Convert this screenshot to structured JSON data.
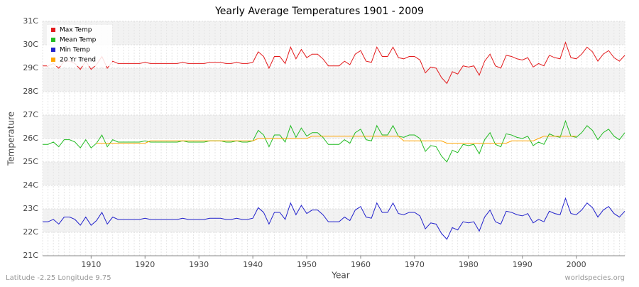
{
  "chart_data": {
    "type": "line",
    "title": "Yearly Average Temperatures 1901 - 2009",
    "x_label": "Year",
    "y_label": "Temperature",
    "footer_left": "Latitude -2.25 Longitude 9.75",
    "footer_right": "worldspecies.org",
    "legend": "top-left",
    "grid": true,
    "x": [
      1901,
      1902,
      1903,
      1904,
      1905,
      1906,
      1907,
      1908,
      1909,
      1910,
      1911,
      1912,
      1913,
      1914,
      1915,
      1916,
      1917,
      1918,
      1919,
      1920,
      1921,
      1922,
      1923,
      1924,
      1925,
      1926,
      1927,
      1928,
      1929,
      1930,
      1931,
      1932,
      1933,
      1934,
      1935,
      1936,
      1937,
      1938,
      1939,
      1940,
      1941,
      1942,
      1943,
      1944,
      1945,
      1946,
      1947,
      1948,
      1949,
      1950,
      1951,
      1952,
      1953,
      1954,
      1955,
      1956,
      1957,
      1958,
      1959,
      1960,
      1961,
      1962,
      1963,
      1964,
      1965,
      1966,
      1967,
      1968,
      1969,
      1970,
      1971,
      1972,
      1973,
      1974,
      1975,
      1976,
      1977,
      1978,
      1979,
      1980,
      1981,
      1982,
      1983,
      1984,
      1985,
      1986,
      1987,
      1988,
      1989,
      1990,
      1991,
      1992,
      1993,
      1994,
      1995,
      1996,
      1997,
      1998,
      1999,
      2000,
      2001,
      2002,
      2003,
      2004,
      2005,
      2006,
      2007,
      2008,
      2009
    ],
    "xlim": [
      1901,
      2009
    ],
    "xticks": [
      1910,
      1920,
      1930,
      1940,
      1950,
      1960,
      1970,
      1980,
      1990,
      2000
    ],
    "ylim": [
      21,
      31
    ],
    "yticks": [
      {
        "value": 21,
        "label": "21C"
      },
      {
        "value": 22,
        "label": "22C"
      },
      {
        "value": 23,
        "label": "23C"
      },
      {
        "value": 24,
        "label": "24C"
      },
      {
        "value": 25,
        "label": "25C"
      },
      {
        "value": 26,
        "label": "26C"
      },
      {
        "value": 27,
        "label": "27C"
      },
      {
        "value": 28,
        "label": "28C"
      },
      {
        "value": 29,
        "label": "29C"
      },
      {
        "value": 30,
        "label": "30C"
      },
      {
        "value": 31,
        "label": "31C"
      }
    ],
    "series": [
      {
        "name": "Max Temp",
        "color": "#e31a1c",
        "values": [
          29.1,
          29.1,
          29.2,
          29.0,
          29.3,
          29.3,
          29.2,
          28.95,
          29.3,
          28.95,
          29.15,
          29.5,
          29.0,
          29.3,
          29.2,
          29.2,
          29.2,
          29.2,
          29.2,
          29.25,
          29.2,
          29.2,
          29.2,
          29.2,
          29.2,
          29.2,
          29.25,
          29.2,
          29.2,
          29.2,
          29.2,
          29.25,
          29.25,
          29.25,
          29.2,
          29.2,
          29.25,
          29.2,
          29.2,
          29.25,
          29.7,
          29.5,
          29.0,
          29.5,
          29.5,
          29.2,
          29.9,
          29.4,
          29.8,
          29.45,
          29.6,
          29.6,
          29.4,
          29.1,
          29.1,
          29.1,
          29.3,
          29.15,
          29.6,
          29.75,
          29.3,
          29.25,
          29.9,
          29.5,
          29.5,
          29.9,
          29.45,
          29.4,
          29.5,
          29.5,
          29.35,
          28.8,
          29.05,
          29.0,
          28.6,
          28.35,
          28.85,
          28.75,
          29.1,
          29.05,
          29.1,
          28.7,
          29.3,
          29.6,
          29.1,
          29.0,
          29.55,
          29.5,
          29.4,
          29.35,
          29.45,
          29.05,
          29.2,
          29.1,
          29.55,
          29.45,
          29.4,
          30.1,
          29.45,
          29.4,
          29.6,
          29.9,
          29.7,
          29.3,
          29.6,
          29.75,
          29.45,
          29.3,
          29.55
        ]
      },
      {
        "name": "Mean Temp",
        "color": "#22bb22",
        "values": [
          25.75,
          25.75,
          25.85,
          25.65,
          25.95,
          25.95,
          25.85,
          25.6,
          25.95,
          25.6,
          25.8,
          26.15,
          25.65,
          25.95,
          25.85,
          25.85,
          25.85,
          25.85,
          25.85,
          25.9,
          25.85,
          25.85,
          25.85,
          25.85,
          25.85,
          25.85,
          25.9,
          25.85,
          25.85,
          25.85,
          25.85,
          25.9,
          25.9,
          25.9,
          25.85,
          25.85,
          25.9,
          25.85,
          25.85,
          25.9,
          26.35,
          26.15,
          25.65,
          26.15,
          26.15,
          25.85,
          26.55,
          26.05,
          26.45,
          26.1,
          26.25,
          26.25,
          26.05,
          25.75,
          25.75,
          25.75,
          25.95,
          25.8,
          26.25,
          26.4,
          25.95,
          25.9,
          26.55,
          26.15,
          26.15,
          26.55,
          26.1,
          26.05,
          26.15,
          26.15,
          26.0,
          25.45,
          25.7,
          25.65,
          25.25,
          25.0,
          25.5,
          25.4,
          25.75,
          25.7,
          25.75,
          25.35,
          25.95,
          26.25,
          25.75,
          25.65,
          26.2,
          26.15,
          26.05,
          26.0,
          26.1,
          25.7,
          25.85,
          25.75,
          26.2,
          26.1,
          26.05,
          26.75,
          26.1,
          26.05,
          26.25,
          26.55,
          26.35,
          25.95,
          26.25,
          26.4,
          26.1,
          25.95,
          26.25
        ]
      },
      {
        "name": "Min Temp",
        "color": "#2222cc",
        "values": [
          22.45,
          22.45,
          22.55,
          22.35,
          22.65,
          22.65,
          22.55,
          22.3,
          22.65,
          22.3,
          22.5,
          22.85,
          22.35,
          22.65,
          22.55,
          22.55,
          22.55,
          22.55,
          22.55,
          22.6,
          22.55,
          22.55,
          22.55,
          22.55,
          22.55,
          22.55,
          22.6,
          22.55,
          22.55,
          22.55,
          22.55,
          22.6,
          22.6,
          22.6,
          22.55,
          22.55,
          22.6,
          22.55,
          22.55,
          22.6,
          23.05,
          22.85,
          22.35,
          22.85,
          22.85,
          22.55,
          23.25,
          22.75,
          23.15,
          22.8,
          22.95,
          22.95,
          22.75,
          22.45,
          22.45,
          22.45,
          22.65,
          22.5,
          22.95,
          23.1,
          22.65,
          22.6,
          23.25,
          22.85,
          22.85,
          23.25,
          22.8,
          22.75,
          22.85,
          22.85,
          22.7,
          22.15,
          22.4,
          22.35,
          21.95,
          21.7,
          22.2,
          22.1,
          22.45,
          22.4,
          22.45,
          22.05,
          22.65,
          22.95,
          22.45,
          22.35,
          22.9,
          22.85,
          22.75,
          22.7,
          22.8,
          22.4,
          22.55,
          22.45,
          22.9,
          22.8,
          22.75,
          23.45,
          22.8,
          22.75,
          22.95,
          23.25,
          23.05,
          22.65,
          22.95,
          23.1,
          22.8,
          22.65,
          22.9
        ]
      },
      {
        "name": "20 Yr Trend",
        "color": "#ffa500",
        "values": [
          null,
          null,
          null,
          null,
          null,
          null,
          null,
          null,
          null,
          null,
          25.8,
          25.8,
          25.8,
          25.8,
          25.8,
          25.8,
          25.8,
          25.8,
          25.8,
          25.8,
          25.9,
          25.9,
          25.9,
          25.9,
          25.9,
          25.9,
          25.9,
          25.9,
          25.9,
          25.9,
          25.9,
          25.9,
          25.9,
          25.9,
          25.9,
          25.9,
          25.9,
          25.9,
          25.9,
          25.9,
          26.0,
          26.0,
          26.0,
          26.0,
          26.0,
          26.0,
          26.0,
          26.0,
          26.0,
          26.0,
          26.1,
          26.1,
          26.1,
          26.1,
          26.1,
          26.1,
          26.1,
          26.1,
          26.1,
          26.1,
          26.1,
          26.1,
          26.1,
          26.1,
          26.1,
          26.1,
          26.1,
          25.9,
          25.9,
          25.9,
          25.9,
          25.9,
          25.9,
          25.9,
          25.9,
          25.8,
          25.8,
          25.8,
          25.8,
          25.8,
          25.8,
          25.8,
          25.8,
          25.8,
          25.8,
          25.8,
          25.8,
          25.9,
          25.9,
          25.9,
          25.9,
          25.9,
          26.0,
          26.1,
          26.1,
          26.1,
          26.1,
          26.1,
          26.1,
          26.1,
          null,
          null,
          null,
          null,
          null,
          null,
          null,
          null,
          null
        ]
      }
    ]
  }
}
